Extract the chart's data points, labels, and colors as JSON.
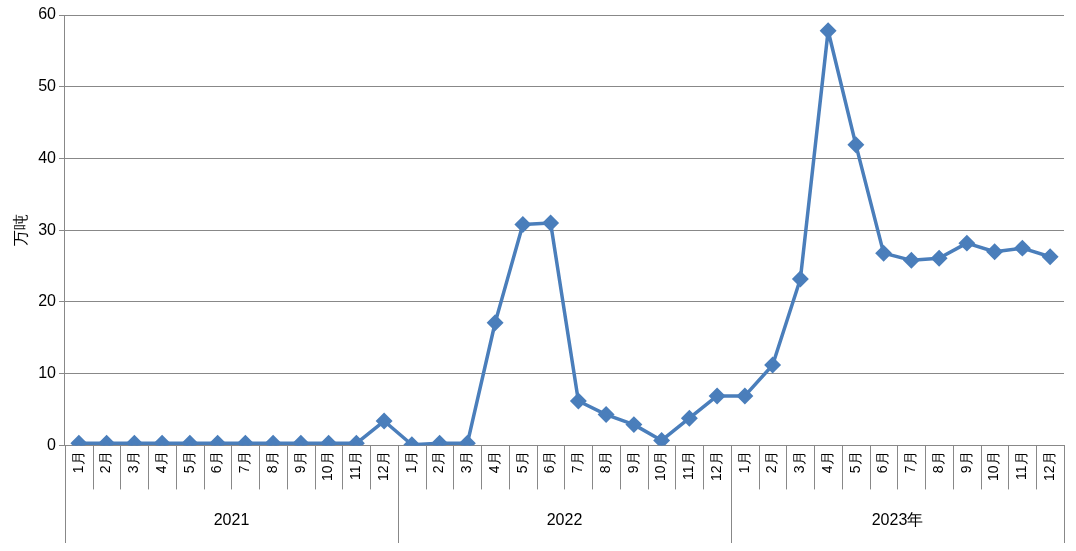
{
  "chart_data": {
    "type": "line",
    "ylabel": "万吨",
    "categories": [
      "1月",
      "2月",
      "3月",
      "4月",
      "5月",
      "6月",
      "7月",
      "8月",
      "9月",
      "10月",
      "11月",
      "12月",
      "1月",
      "2月",
      "3月",
      "4月",
      "5月",
      "6月",
      "7月",
      "8月",
      "9月",
      "10月",
      "11月",
      "12月",
      "1月",
      "2月",
      "3月",
      "4月",
      "5月",
      "6月",
      "7月",
      "8月",
      "9月",
      "10月",
      "11月",
      "12月"
    ],
    "series": [
      {
        "color": "#4a7ebb",
        "values": [
          0.3,
          0.3,
          0.3,
          0.3,
          0.3,
          0.3,
          0.3,
          0.3,
          0.3,
          0.3,
          0.3,
          3.4,
          0.1,
          0.3,
          0.3,
          17.1,
          30.8,
          31.0,
          6.2,
          4.3,
          2.9,
          0.7,
          3.8,
          6.9,
          6.9,
          11.2,
          23.2,
          57.8,
          41.9,
          26.8,
          25.8,
          26.1,
          28.2,
          27.0,
          27.5,
          26.3
        ]
      }
    ],
    "annotations": [
      "2021",
      "2022",
      "2023年"
    ],
    "ylim": [
      0,
      60
    ],
    "yticks": [
      0,
      10,
      20,
      30,
      40,
      50,
      60
    ],
    "grid": "y",
    "legend": false,
    "marker": "diamond",
    "line_style": "solid"
  }
}
